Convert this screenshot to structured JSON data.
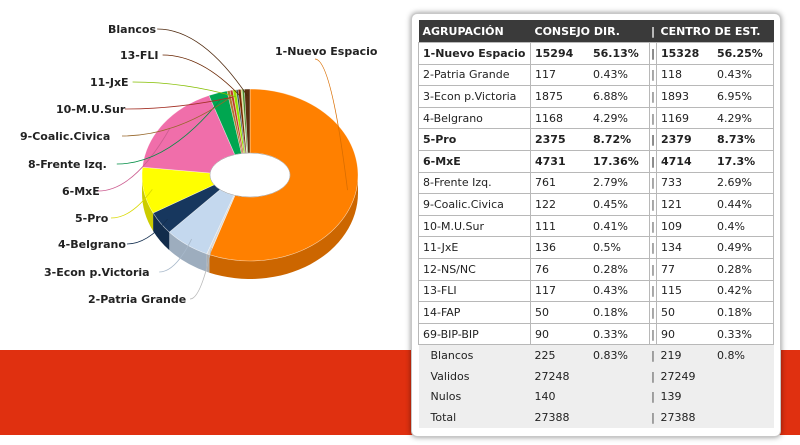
{
  "chart_data": {
    "type": "pie",
    "variant": "donut-3d",
    "categories": [
      "1-Nuevo Espacio",
      "2-Patria Grande",
      "3-Econ p.Victoria",
      "4-Belgrano",
      "5-Pro",
      "6-MxE",
      "8-Frente Izq.",
      "9-Coalic.Civica",
      "10-M.U.Sur",
      "11-JxE",
      "12-NS/NC",
      "13-FLI",
      "14-FAP",
      "69-BIP-BIP",
      "Blancos"
    ],
    "values": [
      56.13,
      0.43,
      6.88,
      4.29,
      8.72,
      17.36,
      2.79,
      0.45,
      0.41,
      0.5,
      0.28,
      0.43,
      0.18,
      0.33,
      0.83
    ],
    "colors": [
      "#ff8000",
      "#d8d8d8",
      "#c4d8ee",
      "#17375e",
      "#ffff00",
      "#f06eaa",
      "#00a650",
      "#b07830",
      "#c0392b",
      "#9be000",
      "#2f4f4f",
      "#7a2a00",
      "#d0d050",
      "#4a8a2a",
      "#5a2e0e"
    ],
    "labels": [
      {
        "text": "1-Nuevo Espacio",
        "cat": 0,
        "side": "right"
      },
      {
        "text": "2-Patria Grande",
        "cat": 1,
        "side": "left"
      },
      {
        "text": "3-Econ p.Victoria",
        "cat": 2,
        "side": "left"
      },
      {
        "text": "4-Belgrano",
        "cat": 3,
        "side": "left"
      },
      {
        "text": "5-Pro",
        "cat": 4,
        "side": "left"
      },
      {
        "text": "6-MxE",
        "cat": 5,
        "side": "left"
      },
      {
        "text": "8-Frente Izq.",
        "cat": 6,
        "side": "left"
      },
      {
        "text": "9-Coalic.Civica",
        "cat": 7,
        "side": "left"
      },
      {
        "text": "10-M.U.Sur",
        "cat": 8,
        "side": "left"
      },
      {
        "text": "11-JxE",
        "cat": 9,
        "side": "left"
      },
      {
        "text": "13-FLI",
        "cat": 11,
        "side": "left"
      },
      {
        "text": "Blancos",
        "cat": 14,
        "side": "left"
      }
    ]
  },
  "table": {
    "headers": {
      "group": "AGRUPACIÓN",
      "council": "CONSEJO DIR.",
      "sep": "|",
      "center": "CENTRO DE EST."
    },
    "rows": [
      {
        "name": "1-Nuevo Espacio",
        "v1": "15294",
        "p1": "56.13%",
        "v2": "15328",
        "p2": "56.25%",
        "bold": true
      },
      {
        "name": "2-Patria Grande",
        "v1": "117",
        "p1": "0.43%",
        "v2": "118",
        "p2": "0.43%",
        "bold": false
      },
      {
        "name": "3-Econ p.Victoria",
        "v1": "1875",
        "p1": "6.88%",
        "v2": "1893",
        "p2": "6.95%",
        "bold": false
      },
      {
        "name": "4-Belgrano",
        "v1": "1168",
        "p1": "4.29%",
        "v2": "1169",
        "p2": "4.29%",
        "bold": false
      },
      {
        "name": "5-Pro",
        "v1": "2375",
        "p1": "8.72%",
        "v2": "2379",
        "p2": "8.73%",
        "bold": true
      },
      {
        "name": "6-MxE",
        "v1": "4731",
        "p1": "17.36%",
        "v2": "4714",
        "p2": "17.3%",
        "bold": true
      },
      {
        "name": "8-Frente Izq.",
        "v1": "761",
        "p1": "2.79%",
        "v2": "733",
        "p2": "2.69%",
        "bold": false
      },
      {
        "name": "9-Coalic.Civica",
        "v1": "122",
        "p1": "0.45%",
        "v2": "121",
        "p2": "0.44%",
        "bold": false
      },
      {
        "name": "10-M.U.Sur",
        "v1": "111",
        "p1": "0.41%",
        "v2": "109",
        "p2": "0.4%",
        "bold": false
      },
      {
        "name": "11-JxE",
        "v1": "136",
        "p1": "0.5%",
        "v2": "134",
        "p2": "0.49%",
        "bold": false
      },
      {
        "name": "12-NS/NC",
        "v1": "76",
        "p1": "0.28%",
        "v2": "77",
        "p2": "0.28%",
        "bold": false
      },
      {
        "name": "13-FLI",
        "v1": "117",
        "p1": "0.43%",
        "v2": "115",
        "p2": "0.42%",
        "bold": false
      },
      {
        "name": "14-FAP",
        "v1": "50",
        "p1": "0.18%",
        "v2": "50",
        "p2": "0.18%",
        "bold": false
      },
      {
        "name": "69-BIP-BIP",
        "v1": "90",
        "p1": "0.33%",
        "v2": "90",
        "p2": "0.33%",
        "bold": false
      }
    ],
    "summary": [
      {
        "name": "Blancos",
        "v1": "225",
        "p1": "0.83%",
        "v2": "219",
        "p2": "0.8%"
      },
      {
        "name": "Validos",
        "v1": "27248",
        "p1": "",
        "v2": "27249",
        "p2": ""
      },
      {
        "name": "Nulos",
        "v1": "140",
        "p1": "",
        "v2": "139",
        "p2": ""
      },
      {
        "name": "Total",
        "v1": "27388",
        "p1": "",
        "v2": "27388",
        "p2": ""
      }
    ]
  },
  "colors": {
    "band": "#e03010",
    "header_bg": "#3a3a3a"
  }
}
